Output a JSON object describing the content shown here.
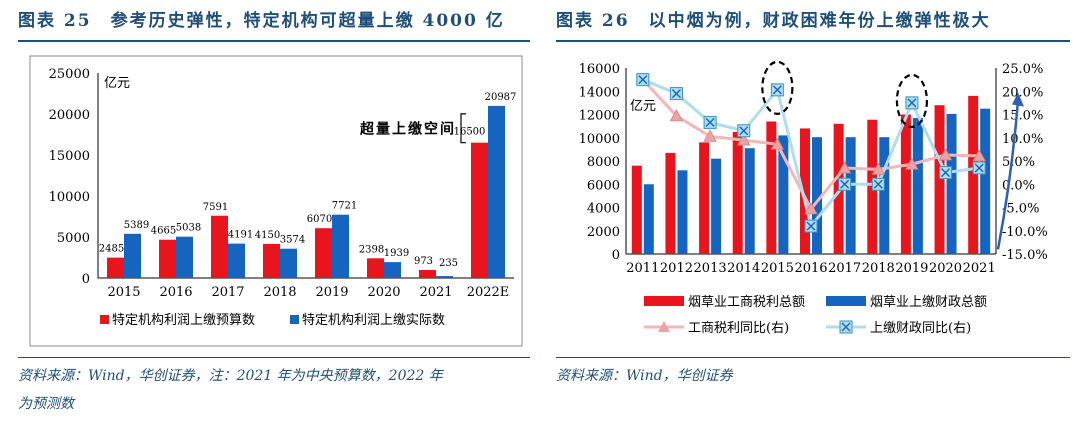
{
  "left": {
    "title": "图表 25　参考历史弹性，特定机构可超量上缴 4000 亿",
    "source_line1": "资料来源：Wind，华创证券，注：2021 年为中央预算数，2022 年",
    "source_line2": "为预测数",
    "chart_data": {
      "type": "bar",
      "title": "",
      "unit": "亿元",
      "categories": [
        "2015",
        "2016",
        "2017",
        "2018",
        "2019",
        "2020",
        "2021",
        "2022E"
      ],
      "series": [
        {
          "name": "特定机构利润上缴预算数",
          "values": [
            2485,
            4665,
            7591,
            4150,
            6070,
            2398,
            973,
            16500
          ],
          "color": "#e8141e"
        },
        {
          "name": "特定机构利润上缴实际数",
          "values": [
            5389,
            5038,
            4191,
            3574,
            7721,
            1939,
            235,
            20987
          ],
          "color": "#1565c0"
        }
      ],
      "ylim": [
        0,
        25000
      ],
      "yticks": [
        0,
        5000,
        10000,
        15000,
        20000,
        25000
      ],
      "annotation": "超量上缴空间",
      "legend_position": "bottom"
    }
  },
  "right": {
    "title": "图表 26　以中烟为例，财政困难年份上缴弹性极大",
    "source": "资料来源：Wind，华创证券",
    "chart_data": {
      "type": "bar",
      "title": "",
      "unit": "亿元",
      "categories": [
        "2011",
        "2012",
        "2013",
        "2014",
        "2015",
        "2016",
        "2017",
        "2018",
        "2019",
        "2020",
        "2021"
      ],
      "series": [
        {
          "name": "烟草业工商税利总额",
          "type": "bar",
          "axis": "left",
          "values": [
            7600,
            8700,
            9600,
            10500,
            11400,
            10800,
            11200,
            11550,
            12000,
            12800,
            13600
          ],
          "color": "#e8141e"
        },
        {
          "name": "烟草业上缴财政总额",
          "type": "bar",
          "axis": "left",
          "values": [
            6000,
            7200,
            8200,
            9100,
            10200,
            10050,
            10050,
            10050,
            11700,
            12050,
            12500
          ],
          "color": "#1565c0"
        },
        {
          "name": "工商税利同比(右)",
          "type": "line",
          "axis": "right",
          "values": [
            22.5,
            14.7,
            10.3,
            9.5,
            8.6,
            -5.3,
            3.5,
            3.2,
            4.3,
            6.3,
            6.1
          ],
          "color": "#f4b6b6"
        },
        {
          "name": "上缴财政同比(右)",
          "type": "line",
          "axis": "right",
          "values": [
            22.5,
            19.5,
            13.3,
            11.5,
            20.3,
            -9.0,
            0.0,
            0.0,
            17.5,
            2.5,
            3.5
          ],
          "color": "#aeddee"
        }
      ],
      "ylim_left": [
        0,
        16000
      ],
      "yticks_left": [
        0,
        2000,
        4000,
        6000,
        8000,
        10000,
        12000,
        14000,
        16000
      ],
      "ylim_right": [
        -15,
        25
      ],
      "yticks_right": [
        "-15.0%",
        "-10.0%",
        "-5.0%",
        "0.0%",
        "5.0%",
        "10.0%",
        "15.0%",
        "20.0%",
        "25.0%"
      ],
      "highlight_years": [
        "2015",
        "2019"
      ],
      "legend_position": "bottom"
    }
  }
}
